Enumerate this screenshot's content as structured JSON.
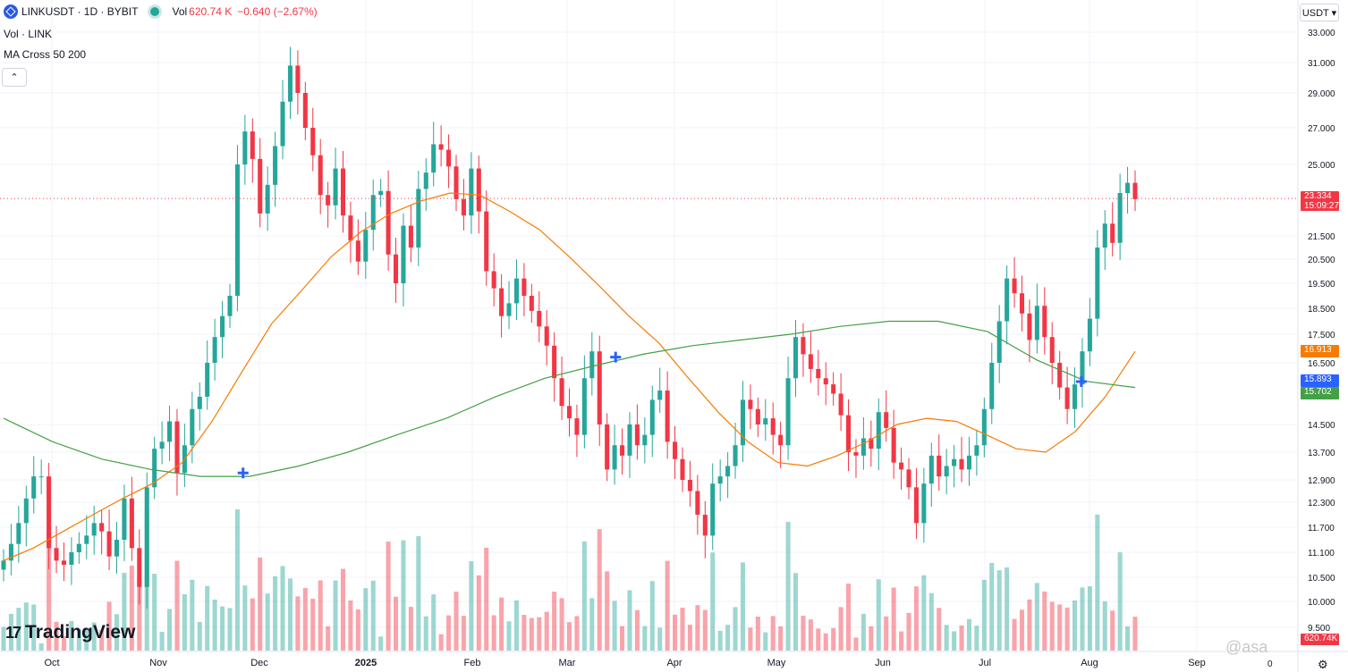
{
  "header": {
    "symbol": "LINKUSDT · 1D · BYBIT",
    "vol_label": "Vol",
    "vol_value": "620.74 K",
    "change": "−0.640 (−2.67%)",
    "indicator_vol": "Vol · LINK",
    "indicator_ma": "MA Cross 50 200",
    "collapse_glyph": "⌃"
  },
  "price_axis": {
    "currency_button": "USDT ▾",
    "ticks": [
      "33.000",
      "31.000",
      "29.000",
      "27.000",
      "25.000",
      "21.500",
      "20.500",
      "19.500",
      "18.500",
      "17.500",
      "16.500",
      "14.500",
      "13.700",
      "12.900",
      "12.300",
      "11.700",
      "11.100",
      "10.500",
      "10.000",
      "9.500"
    ],
    "last_price": {
      "value": "23.334",
      "countdown": "15:09:27",
      "color": "#f23645"
    },
    "ma50_label": {
      "value": "16.913",
      "color": "#f57c00"
    },
    "ma200_label": {
      "value": "15.702",
      "color": "#43a047"
    },
    "cross_label": {
      "value": "15.893",
      "color": "#2962ff"
    },
    "volume_label": {
      "value": "620.74K",
      "color": "#f23645"
    }
  },
  "time_axis": {
    "labels": [
      "Oct",
      "Nov",
      "Dec",
      "2025",
      "Feb",
      "Mar",
      "Apr",
      "May",
      "Jun",
      "Jul",
      "Aug",
      "Sep"
    ],
    "zero_label": "0"
  },
  "footer": {
    "logo_text": "TradingView",
    "logo_mark": "17",
    "watermark": "@asa",
    "settings_icon": "⚙"
  },
  "colors": {
    "up": "#26a69a",
    "down": "#f23645",
    "ma50": "#f57c00",
    "ma200": "#43a047",
    "cross_marker": "#2962ff"
  },
  "chart_data": {
    "type": "candlestick",
    "symbol": "LINKUSDT",
    "interval": "1D",
    "exchange": "BYBIT",
    "x_range": [
      "2024-09-20",
      "2025-09-14"
    ],
    "months": [
      "Oct",
      "Nov",
      "Dec",
      "2025",
      "Feb",
      "Mar",
      "Apr",
      "May",
      "Jun",
      "Jul",
      "Aug",
      "Sep"
    ],
    "ylim": [
      9.2,
      33.5
    ],
    "y_scale": "log",
    "closes": [
      10.9,
      11.3,
      11.8,
      12.4,
      13.0,
      13.0,
      11.2,
      10.9,
      10.8,
      11.1,
      11.3,
      11.5,
      11.8,
      11.6,
      11.0,
      11.4,
      12.4,
      11.2,
      10.3,
      12.7,
      13.8,
      14.0,
      14.6,
      13.1,
      13.9,
      15.0,
      15.4,
      16.5,
      17.4,
      18.2,
      19.0,
      25.0,
      26.8,
      25.3,
      22.6,
      24.0,
      26.0,
      28.5,
      30.8,
      29.0,
      27.0,
      25.5,
      23.5,
      23.0,
      24.8,
      22.5,
      21.3,
      20.4,
      21.8,
      23.5,
      23.7,
      20.7,
      19.5,
      22.0,
      21.0,
      23.8,
      24.6,
      26.1,
      25.8,
      24.9,
      23.3,
      22.5,
      24.8,
      22.7,
      20.0,
      19.3,
      18.2,
      18.7,
      19.7,
      19.0,
      18.4,
      17.8,
      17.1,
      16.0,
      15.1,
      14.7,
      14.2,
      16.0,
      16.9,
      14.5,
      13.2,
      13.9,
      13.6,
      14.5,
      13.9,
      14.2,
      15.3,
      15.6,
      14.0,
      13.5,
      12.9,
      12.6,
      12.0,
      11.5,
      12.8,
      13.0,
      13.3,
      13.9,
      15.3,
      15.0,
      14.5,
      14.7,
      14.2,
      13.9,
      16.0,
      17.4,
      16.8,
      16.3,
      16.0,
      15.8,
      15.5,
      14.8,
      13.7,
      13.6,
      14.1,
      13.8,
      14.9,
      14.4,
      13.4,
      13.2,
      12.7,
      11.8,
      12.8,
      13.6,
      13.0,
      13.3,
      13.5,
      13.2,
      13.6,
      13.9,
      15.0,
      16.5,
      18.0,
      19.7,
      19.1,
      18.3,
      17.3,
      18.6,
      17.4,
      16.5,
      15.7,
      15.0,
      15.8,
      16.9,
      18.1,
      21.0,
      22.1,
      21.2,
      23.6,
      24.1,
      23.3
    ],
    "series": [
      {
        "name": "MA 50",
        "values": [
          10.9,
          11.2,
          11.6,
          12.0,
          12.4,
          12.8,
          13.4,
          14.6,
          16.2,
          17.9,
          19.2,
          20.6,
          21.7,
          22.6,
          23.2,
          23.6,
          23.5,
          22.7,
          21.8,
          20.6,
          19.4,
          18.2,
          17.2,
          16.0,
          14.9,
          14.0,
          13.4,
          13.3,
          13.6,
          14.0,
          14.5,
          14.7,
          14.6,
          14.2,
          13.8,
          13.7,
          14.3,
          15.4,
          16.9
        ]
      },
      {
        "name": "MA 200",
        "values": [
          14.7,
          14.0,
          13.5,
          13.2,
          13.0,
          13.0,
          13.3,
          13.7,
          14.2,
          14.7,
          15.4,
          16.0,
          16.4,
          16.8,
          17.1,
          17.3,
          17.5,
          17.8,
          18.0,
          18.0,
          17.6,
          16.6,
          15.9,
          15.7
        ]
      }
    ],
    "crosses": [
      {
        "date": "2024-12-01",
        "value": 13.1
      },
      {
        "date": "2025-03-23",
        "value": 16.7
      },
      {
        "date": "2025-08-10",
        "value": 15.89
      }
    ]
  }
}
